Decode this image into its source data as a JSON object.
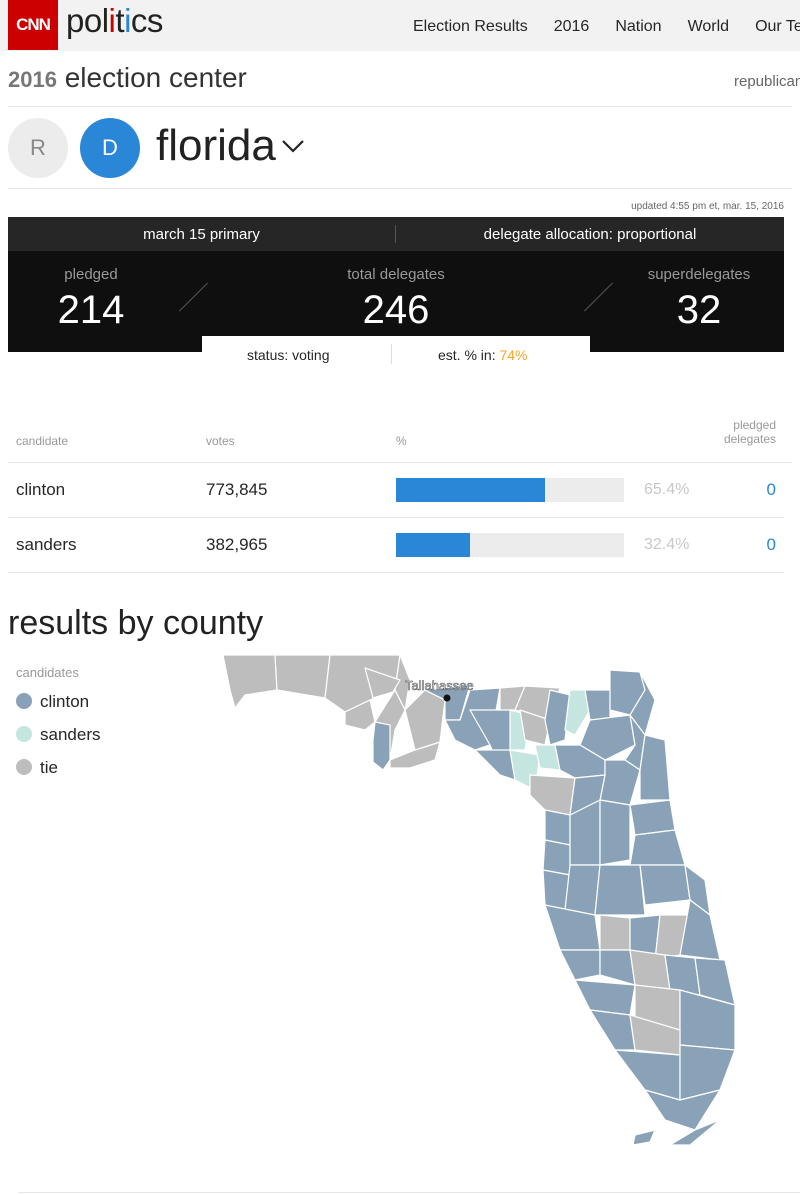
{
  "brand": {
    "logo_text": "CNN",
    "section_prefix": "pol",
    "section_i1": "i",
    "section_mid": "t",
    "section_i2": "i",
    "section_suffix": "cs"
  },
  "nav": {
    "items": [
      "Election Results",
      "2016",
      "Nation",
      "World",
      "Our Te"
    ]
  },
  "header": {
    "year": "2016",
    "title": "election center",
    "party_link": "republican"
  },
  "state": {
    "r_label": "R",
    "d_label": "D",
    "name": "florida"
  },
  "updated": "updated 4:55 pm et, mar. 15, 2016",
  "contest": {
    "name": "march 15 primary",
    "allocation": "delegate allocation: proportional"
  },
  "delegates": {
    "pledged_label": "pledged",
    "pledged": "214",
    "total_label": "total delegates",
    "total": "246",
    "super_label": "superdelegates",
    "super": "32"
  },
  "status": {
    "status_text": "status: voting",
    "est_label": "est. % in:",
    "est_value": "74%"
  },
  "table": {
    "headers": {
      "candidate": "candidate",
      "votes": "votes",
      "pct": "%",
      "pledged_line1": "pledged",
      "pledged_line2": "delegates"
    },
    "rows": [
      {
        "name": "clinton",
        "votes": "773,845",
        "pct": "65.4%",
        "pct_value": 65.4,
        "delegates": "0"
      },
      {
        "name": "sanders",
        "votes": "382,965",
        "pct": "32.4%",
        "pct_value": 32.4,
        "delegates": "0"
      }
    ]
  },
  "county": {
    "title": "results by county",
    "legend_title": "candidates",
    "legend": [
      {
        "label": "clinton",
        "color": "#8aa2b8"
      },
      {
        "label": "sanders",
        "color": "#c5e6e0"
      },
      {
        "label": "tie",
        "color": "#bdbdbd"
      }
    ],
    "city_label": "Tallahassee"
  },
  "colors": {
    "accent": "#2a86d6",
    "brand_red": "#cc0000",
    "est_orange": "#f5a623"
  }
}
